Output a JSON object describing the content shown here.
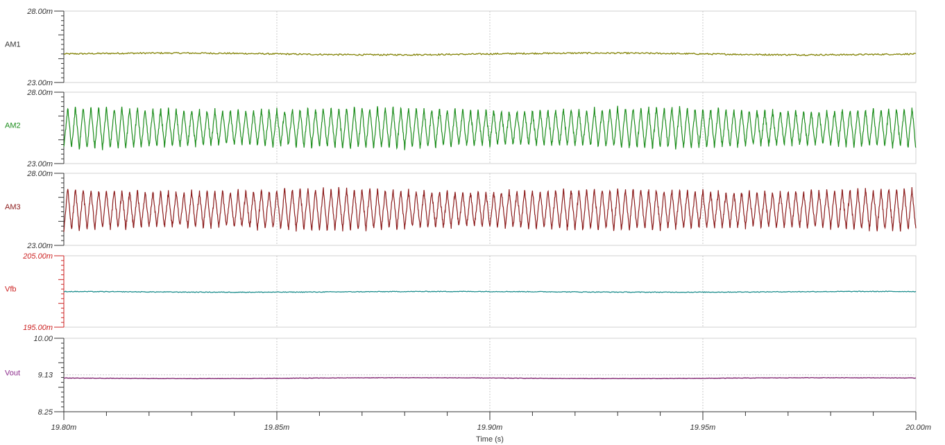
{
  "chart_data": {
    "type": "line",
    "x_axis": {
      "label": "Time (s)",
      "min": 19.8,
      "max": 20.0,
      "unit_scale": "m",
      "major_ticks": [
        19.8,
        19.85,
        19.9,
        19.95,
        20.0
      ],
      "tick_labels": [
        "19.80m",
        "19.85m",
        "19.90m",
        "19.95m",
        "20.00m"
      ],
      "grid": true
    },
    "panels": [
      {
        "name": "AM1",
        "color": "#808000",
        "label_color": "#333333",
        "tick_color": "#333333",
        "ymin": 23.0,
        "ymax": 28.0,
        "ymin_label": "23.00m",
        "ymax_label": "28.00m",
        "mean": 25.0,
        "amplitude": 0.06,
        "cycles": 0,
        "ripple": 0.05
      },
      {
        "name": "AM2",
        "color": "#1a8c1a",
        "label_color": "#1a8c1a",
        "tick_color": "#333333",
        "ymin": 23.0,
        "ymax": 28.0,
        "ymin_label": "23.00m",
        "ymax_label": "28.00m",
        "mean": 25.5,
        "amplitude": 1.35,
        "cycles": 110,
        "ripple": 0.15
      },
      {
        "name": "AM3",
        "color": "#8b1a1a",
        "label_color": "#8b1a1a",
        "tick_color": "#333333",
        "ymin": 23.0,
        "ymax": 28.0,
        "ymin_label": "23.00m",
        "ymax_label": "28.00m",
        "mean": 25.5,
        "amplitude": 1.35,
        "cycles": 110,
        "ripple": 0.15
      },
      {
        "name": "Vfb",
        "color": "#1a8c8c",
        "label_color": "#cc2222",
        "tick_color": "#cc2222",
        "ymin": 195.0,
        "ymax": 205.0,
        "ymin_label": "195.00m",
        "ymax_label": "205.00m",
        "mean": 199.95,
        "amplitude": 0.05,
        "cycles": 0,
        "ripple": 0.05
      },
      {
        "name": "Vout",
        "color": "#7a1a6a",
        "label_color": "#8b2a8b",
        "tick_color": "#333333",
        "ymin": 8.25,
        "ymax": 10.0,
        "ymin_label": "8.25",
        "ymax_label": "10.00",
        "mid_label": "9.13",
        "mid_value": 9.13,
        "mean": 9.05,
        "amplitude": 0.01,
        "cycles": 0,
        "ripple": 0.005
      }
    ]
  }
}
